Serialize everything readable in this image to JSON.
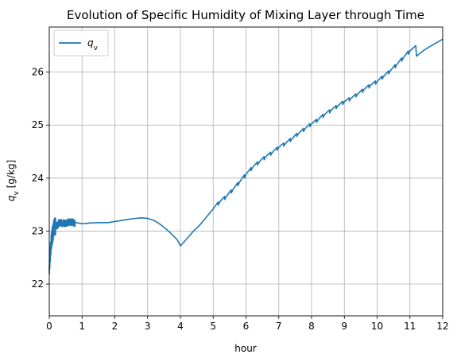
{
  "chart_data": {
    "type": "line",
    "title": "Evolution of Specific Humidity of Mixing Layer through Time",
    "xlabel": "hour",
    "ylabel": "q_v [g/kg]",
    "xlim": [
      0,
      12
    ],
    "ylim": [
      21.4,
      26.85
    ],
    "grid": true,
    "legend_position": "top-left",
    "x_ticks": [
      0,
      1,
      2,
      3,
      4,
      5,
      6,
      7,
      8,
      9,
      10,
      11,
      12
    ],
    "y_ticks": [
      22,
      23,
      24,
      25,
      26
    ],
    "series": [
      {
        "name": "q_v",
        "color": "#1f77b4",
        "x": [
          0.0,
          0.05,
          0.08,
          0.1,
          0.15,
          0.2,
          0.25,
          0.3,
          0.4,
          0.5,
          0.6,
          0.7,
          0.8,
          0.9,
          1.0,
          1.2,
          1.5,
          1.8,
          2.0,
          2.3,
          2.5,
          2.8,
          3.0,
          3.2,
          3.4,
          3.6,
          3.8,
          3.9,
          4.0,
          4.2,
          4.4,
          4.6,
          4.8,
          5.0,
          5.2,
          5.4,
          5.6,
          5.8,
          6.0,
          6.2,
          6.4,
          6.6,
          6.8,
          7.0,
          7.2,
          7.4,
          7.6,
          7.8,
          8.0,
          8.2,
          8.4,
          8.6,
          8.8,
          9.0,
          9.2,
          9.4,
          9.6,
          9.8,
          10.0,
          10.2,
          10.4,
          10.6,
          10.8,
          11.0,
          11.18,
          11.2,
          11.4,
          11.6,
          11.8,
          12.0
        ],
        "y": [
          22.35,
          22.7,
          22.9,
          22.95,
          23.05,
          23.1,
          23.12,
          23.15,
          23.15,
          23.16,
          23.16,
          23.16,
          23.16,
          23.15,
          23.14,
          23.15,
          23.16,
          23.16,
          23.18,
          23.21,
          23.23,
          23.25,
          23.24,
          23.2,
          23.12,
          23.02,
          22.9,
          22.84,
          22.72,
          22.86,
          23.0,
          23.12,
          23.27,
          23.42,
          23.55,
          23.65,
          23.78,
          23.92,
          24.07,
          24.2,
          24.3,
          24.4,
          24.48,
          24.58,
          24.65,
          24.74,
          24.84,
          24.93,
          25.02,
          25.1,
          25.2,
          25.28,
          25.36,
          25.44,
          25.5,
          25.58,
          25.67,
          25.75,
          25.82,
          25.92,
          26.02,
          26.14,
          26.27,
          26.4,
          26.5,
          26.3,
          26.4,
          26.48,
          26.55,
          26.62
        ]
      }
    ],
    "noise_window": [
      0.0,
      0.85
    ]
  }
}
